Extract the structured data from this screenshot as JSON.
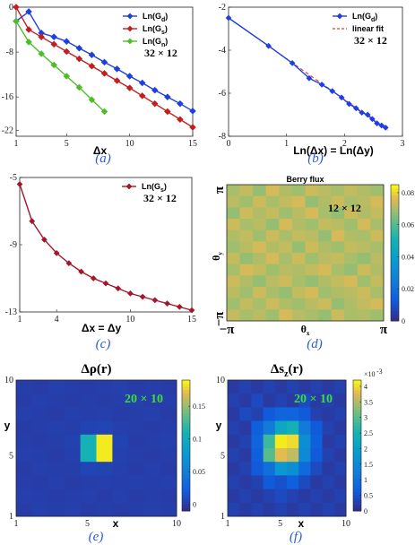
{
  "chart_data": [
    {
      "id": "a",
      "type": "line",
      "sublabel": "(a)",
      "xlabel": "Δx",
      "xlim": [
        1,
        15
      ],
      "ylim": [
        -23,
        0
      ],
      "xticks": [
        1,
        5,
        10,
        15
      ],
      "yticks": [
        0,
        -8,
        -16,
        -22
      ],
      "size_label": "32 × 12",
      "legend_position": "top-right",
      "series": [
        {
          "name": "Ln(G_d)",
          "legend": [
            "Ln(G",
            "d",
            ")"
          ],
          "color": "#1f3fe0",
          "marker": "diamond",
          "x": [
            1,
            2,
            3,
            4,
            5,
            6,
            7,
            8,
            9,
            10,
            11,
            12,
            13,
            14,
            15
          ],
          "y": [
            -2.5,
            -0.8,
            -4.6,
            -5.3,
            -6.1,
            -7.3,
            -8.5,
            -9.8,
            -11.0,
            -12.3,
            -13.5,
            -14.8,
            -16.0,
            -17.2,
            -18.5
          ]
        },
        {
          "name": "Ln(G_s)",
          "legend": [
            "Ln(G",
            "s",
            ")"
          ],
          "color": "#c31f1f",
          "marker": "diamond",
          "x": [
            1,
            2,
            3,
            4,
            5,
            6,
            7,
            8,
            9,
            10,
            11,
            12,
            13,
            14,
            15
          ],
          "y": [
            0,
            -4.0,
            -5.3,
            -6.6,
            -7.9,
            -9.2,
            -10.5,
            -11.8,
            -13.1,
            -14.4,
            -15.8,
            -17.2,
            -18.6,
            -20.0,
            -21.4
          ]
        },
        {
          "name": "Ln(G_n)",
          "legend": [
            "Ln(G",
            "n",
            ")"
          ],
          "color": "#4fbd2a",
          "marker": "diamond",
          "x": [
            1,
            2,
            3,
            4,
            5,
            6,
            7,
            8
          ],
          "y": [
            -2.5,
            -6.2,
            -8.3,
            -10.3,
            -12.3,
            -14.3,
            -16.5,
            -18.6
          ]
        }
      ]
    },
    {
      "id": "b",
      "type": "line",
      "sublabel": "(b)",
      "xlabel": "Ln(Δx) = Ln(Δy)",
      "xlim": [
        0,
        3
      ],
      "ylim": [
        -8,
        -2
      ],
      "xticks": [
        0,
        1,
        2,
        3
      ],
      "yticks": [
        -2,
        -4,
        -6,
        -8
      ],
      "size_label": "32 × 12",
      "legend_position": "top-right",
      "series": [
        {
          "name": "Ln(G_d)",
          "legend": [
            "Ln(G",
            "d",
            ")"
          ],
          "color": "#1f3fe0",
          "marker": "diamond",
          "x": [
            0,
            0.69,
            1.1,
            1.39,
            1.61,
            1.79,
            1.95,
            2.08,
            2.2,
            2.3,
            2.4,
            2.48,
            2.56,
            2.64,
            2.71
          ],
          "y": [
            -2.5,
            -3.8,
            -4.6,
            -5.3,
            -5.6,
            -5.9,
            -6.2,
            -6.5,
            -6.7,
            -6.9,
            -7.0,
            -7.2,
            -7.4,
            -7.5,
            -7.6
          ]
        }
      ],
      "fit": {
        "name": "linear fit",
        "color": "#e0452f",
        "x": [
          0,
          2.75
        ],
        "y": [
          -2.5,
          -7.72
        ]
      }
    },
    {
      "id": "c",
      "type": "line",
      "sublabel": "(c)",
      "xlabel": "Δx = Δy",
      "xlim": [
        1,
        15
      ],
      "ylim": [
        -13,
        -5
      ],
      "xticks": [
        1,
        4,
        10,
        15
      ],
      "yticks": [
        -5,
        -9,
        -13
      ],
      "size_label": "32 × 12",
      "legend_position": "top-right",
      "series": [
        {
          "name": "Ln(G_s)",
          "legend": [
            "Ln(G",
            "s",
            ")"
          ],
          "color": "#a3162b",
          "marker": "diamond",
          "x": [
            1,
            2,
            3,
            4,
            5,
            6,
            7,
            8,
            9,
            10,
            11,
            12,
            13,
            14,
            15
          ],
          "y": [
            -5.4,
            -7.6,
            -8.7,
            -9.5,
            -10.1,
            -10.6,
            -11.0,
            -11.3,
            -11.6,
            -11.9,
            -12.1,
            -12.3,
            -12.5,
            -12.7,
            -12.9
          ]
        }
      ]
    },
    {
      "id": "d",
      "type": "heatmap",
      "title": "Berry flux",
      "sublabel": "(d)",
      "xlabel": "θ",
      "xlabel_sub": "x",
      "ylabel": "θ",
      "ylabel_sub": "y",
      "xticks": [
        "−π",
        "π"
      ],
      "yticks": [
        "π",
        "−π"
      ],
      "size_label": "12 × 12",
      "colorbar": {
        "min": 0,
        "max": 0.085,
        "ticks": [
          0,
          0.02,
          0.04,
          0.06,
          0.08
        ],
        "tick_labels": [
          "0",
          "0.02",
          "0.04",
          "0.06",
          "0.08"
        ]
      },
      "rows": 12,
      "cols": 12,
      "values": [
        [
          0.07,
          0.073,
          0.068,
          0.075,
          0.071,
          0.069,
          0.074,
          0.072,
          0.07,
          0.073,
          0.071,
          0.069
        ],
        [
          0.072,
          0.069,
          0.074,
          0.07,
          0.073,
          0.075,
          0.068,
          0.071,
          0.074,
          0.07,
          0.072,
          0.075
        ],
        [
          0.068,
          0.074,
          0.071,
          0.073,
          0.069,
          0.072,
          0.075,
          0.07,
          0.068,
          0.074,
          0.071,
          0.073
        ],
        [
          0.074,
          0.07,
          0.072,
          0.068,
          0.075,
          0.071,
          0.069,
          0.073,
          0.072,
          0.069,
          0.075,
          0.07
        ],
        [
          0.071,
          0.073,
          0.069,
          0.074,
          0.07,
          0.073,
          0.072,
          0.068,
          0.075,
          0.071,
          0.07,
          0.074
        ],
        [
          0.069,
          0.072,
          0.075,
          0.071,
          0.073,
          0.068,
          0.074,
          0.071,
          0.069,
          0.073,
          0.072,
          0.07
        ],
        [
          0.073,
          0.068,
          0.071,
          0.075,
          0.07,
          0.074,
          0.069,
          0.072,
          0.073,
          0.07,
          0.068,
          0.072
        ],
        [
          0.07,
          0.075,
          0.073,
          0.069,
          0.072,
          0.071,
          0.073,
          0.075,
          0.07,
          0.068,
          0.074,
          0.071
        ],
        [
          0.074,
          0.071,
          0.068,
          0.072,
          0.074,
          0.07,
          0.068,
          0.071,
          0.073,
          0.075,
          0.069,
          0.073
        ],
        [
          0.072,
          0.069,
          0.074,
          0.07,
          0.068,
          0.073,
          0.075,
          0.069,
          0.071,
          0.072,
          0.074,
          0.07
        ],
        [
          0.069,
          0.073,
          0.07,
          0.074,
          0.071,
          0.069,
          0.072,
          0.074,
          0.068,
          0.071,
          0.073,
          0.075
        ],
        [
          0.073,
          0.07,
          0.072,
          0.069,
          0.075,
          0.072,
          0.07,
          0.068,
          0.074,
          0.07,
          0.071,
          0.069
        ]
      ]
    },
    {
      "id": "e",
      "type": "heatmap",
      "title": "Δρ(r)",
      "sublabel": "(e)",
      "xlabel": "x",
      "ylabel": "y",
      "xticks": [
        1,
        5,
        10
      ],
      "yticks": [
        10,
        5,
        1
      ],
      "size_label": "20 × 10",
      "colorbar": {
        "min": -0.01,
        "max": 0.19,
        "ticks": [
          0,
          0.05,
          0.1,
          0.15
        ],
        "tick_labels": [
          "0",
          "0.05",
          "0.1",
          "0.15"
        ]
      },
      "rows": 10,
      "cols": 10,
      "values": [
        [
          0.002,
          0.001,
          0.003,
          0.002,
          0.001,
          0.002,
          0.003,
          0.001,
          0.002,
          0.001
        ],
        [
          0.001,
          0.003,
          0.002,
          0.001,
          0.002,
          0.001,
          0.002,
          0.003,
          0.001,
          0.002
        ],
        [
          0.003,
          0.002,
          0.001,
          0.003,
          0.002,
          0.003,
          0.001,
          0.002,
          0.003,
          0.001
        ],
        [
          0.001,
          0.002,
          0.003,
          0.002,
          0.005,
          0.006,
          0.003,
          0.002,
          0.001,
          0.002
        ],
        [
          0.002,
          0.001,
          0.002,
          0.004,
          0.11,
          0.185,
          0.005,
          0.001,
          0.002,
          0.003
        ],
        [
          0.003,
          0.002,
          0.001,
          0.003,
          0.11,
          0.185,
          0.004,
          0.002,
          0.001,
          0.002
        ],
        [
          0.001,
          0.003,
          0.002,
          0.002,
          0.006,
          0.005,
          0.003,
          0.001,
          0.003,
          0.001
        ],
        [
          0.002,
          0.001,
          0.003,
          0.001,
          0.002,
          0.003,
          0.002,
          0.003,
          0.002,
          0.003
        ],
        [
          0.003,
          0.002,
          0.001,
          0.002,
          0.003,
          0.001,
          0.003,
          0.001,
          0.002,
          0.001
        ],
        [
          0.001,
          0.003,
          0.002,
          0.003,
          0.001,
          0.002,
          0.001,
          0.002,
          0.003,
          0.002
        ]
      ]
    },
    {
      "id": "f",
      "type": "heatmap",
      "title": "Δs_z(r)",
      "sublabel": "(f)",
      "xlabel": "x",
      "ylabel": "y",
      "xticks": [
        1,
        5,
        10
      ],
      "yticks": [
        10,
        5,
        1
      ],
      "size_label": "20 × 10",
      "colorbar": {
        "min": 0,
        "max": 0.0042,
        "exponent": "×10^-3",
        "ticks": [
          0,
          0.0005,
          0.001,
          0.0015,
          0.002,
          0.0025,
          0.003,
          0.0035,
          0.004
        ],
        "tick_labels": [
          "0",
          "0.5",
          "1",
          "1.5",
          "2",
          "2.5",
          "3",
          "3.5",
          "4"
        ]
      },
      "rows": 10,
      "cols": 10,
      "values": [
        [
          0.0002,
          0.0003,
          0.0002,
          0.0003,
          0.0002,
          0.0003,
          0.0002,
          0.0003,
          0.0002,
          0.0003
        ],
        [
          0.0003,
          0.0002,
          0.0004,
          0.0002,
          0.0003,
          0.0002,
          0.0004,
          0.0002,
          0.0003,
          0.0002
        ],
        [
          0.0002,
          0.0004,
          0.0003,
          0.0006,
          0.0008,
          0.0008,
          0.0006,
          0.0003,
          0.0002,
          0.0003
        ],
        [
          0.0003,
          0.0002,
          0.0007,
          0.0012,
          0.0022,
          0.0025,
          0.0012,
          0.0006,
          0.0003,
          0.0002
        ],
        [
          0.0002,
          0.0003,
          0.0008,
          0.0028,
          0.0041,
          0.004,
          0.0016,
          0.0007,
          0.0002,
          0.0003
        ],
        [
          0.0003,
          0.0002,
          0.0007,
          0.003,
          0.0038,
          0.0036,
          0.0015,
          0.0006,
          0.0003,
          0.0002
        ],
        [
          0.0002,
          0.0003,
          0.0006,
          0.001,
          0.0018,
          0.0016,
          0.0009,
          0.0004,
          0.0002,
          0.0003
        ],
        [
          0.0003,
          0.0002,
          0.0003,
          0.0006,
          0.0005,
          0.0007,
          0.0004,
          0.0002,
          0.0003,
          0.0002
        ],
        [
          0.0002,
          0.0003,
          0.0002,
          0.0003,
          0.0004,
          0.0003,
          0.0002,
          0.0003,
          0.0002,
          0.0003
        ],
        [
          0.0003,
          0.0002,
          0.0003,
          0.0002,
          0.0003,
          0.0002,
          0.0003,
          0.0002,
          0.0003,
          0.0002
        ]
      ]
    }
  ]
}
